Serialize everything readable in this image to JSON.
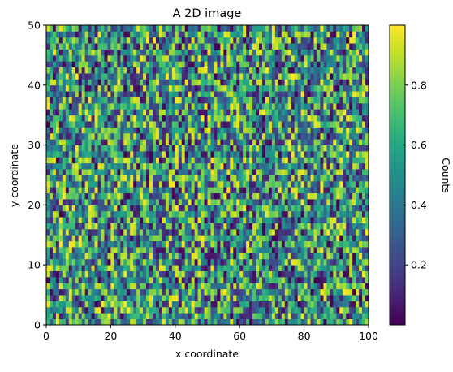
{
  "chart_data": {
    "type": "heatmap",
    "title": "A 2D image",
    "xlabel": "x coordinate",
    "ylabel": "y coordinate",
    "xlim": [
      0,
      100
    ],
    "ylim": [
      0,
      50
    ],
    "x_ticks": [
      0,
      20,
      40,
      60,
      80,
      100
    ],
    "y_ticks": [
      0,
      10,
      20,
      30,
      40,
      50
    ],
    "grid": false,
    "colormap": "viridis",
    "value_range": [
      0.0,
      1.0
    ],
    "colorbar": {
      "label": "Counts",
      "ticks": [
        0.2,
        0.4,
        0.6,
        0.8
      ]
    },
    "grid_shape": {
      "nx": 100,
      "ny": 50
    },
    "values": "uniform random values in [0, 1] per 1×1 cell (individual cell values not legible)"
  }
}
